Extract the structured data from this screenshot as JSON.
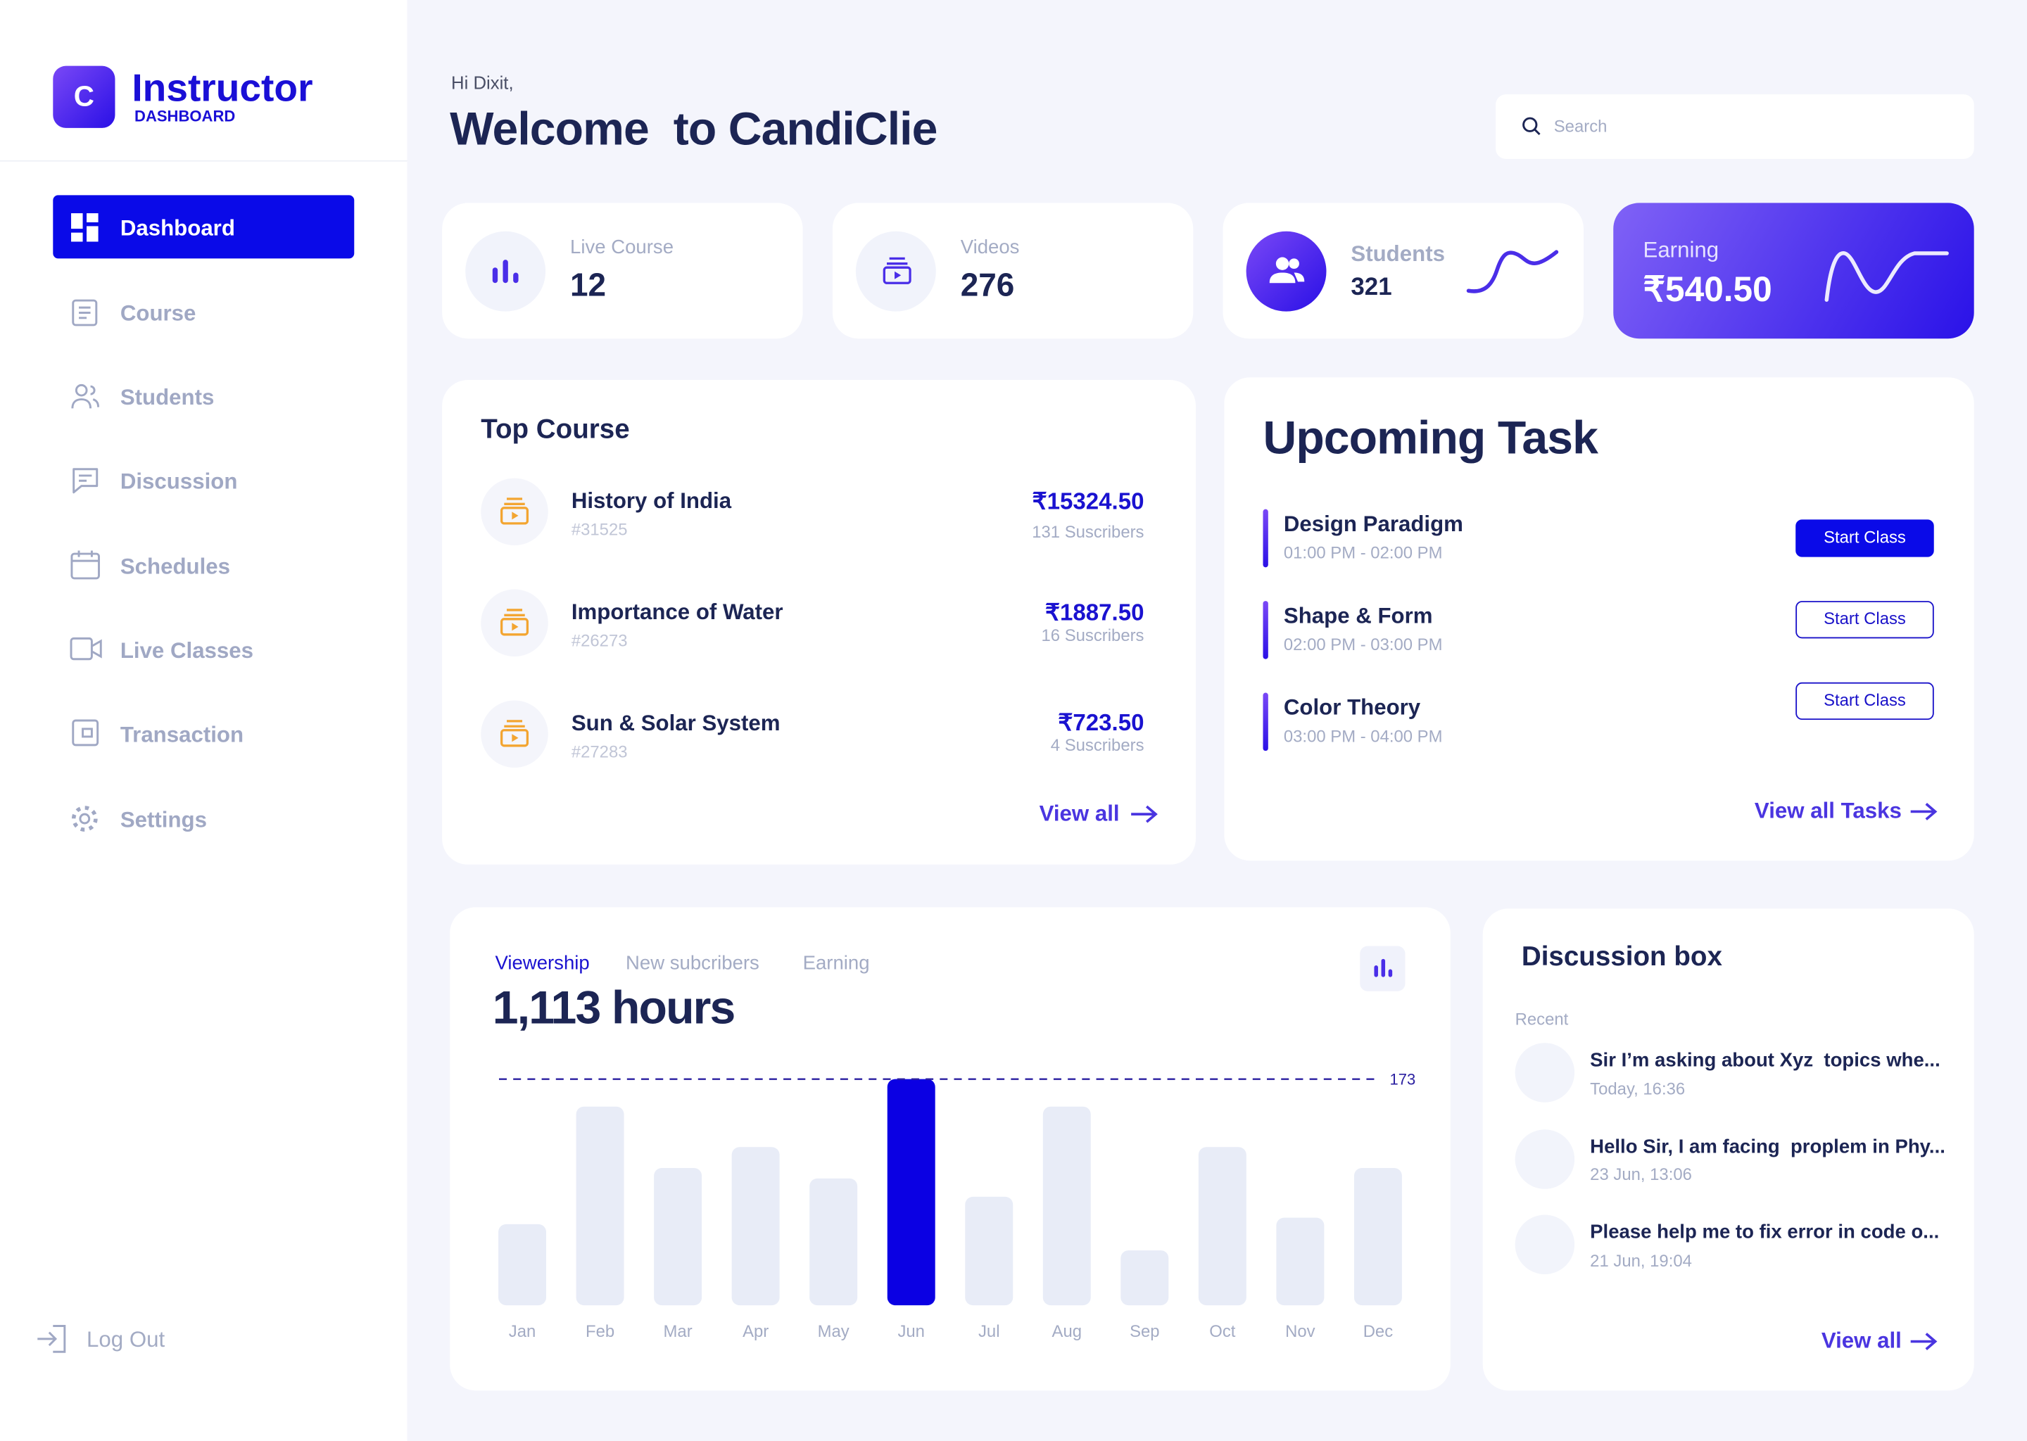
{
  "sidebar": {
    "logo_letter": "C",
    "brand": "Instructor",
    "brand_sub": "DASHBOARD",
    "nav": [
      "Dashboard",
      "Course",
      "Students",
      "Discussion",
      "Schedules",
      "Live Classes",
      "Transaction",
      "Settings"
    ],
    "logout": "Log Out"
  },
  "header": {
    "greeting": "Hi Dixit,",
    "title": "Welcome  to CandiClie",
    "search_placeholder": "Search"
  },
  "stats": [
    {
      "label": "Live Course",
      "value": 12
    },
    {
      "label": "Videos",
      "value": 276
    },
    {
      "label": "Students",
      "value": 321
    },
    {
      "label": "Earning",
      "value": "₹540.50"
    }
  ],
  "top_course": {
    "title": "Top Course",
    "items": [
      {
        "name": "History of India",
        "id": "#31525",
        "price": "₹15324.50",
        "subscribers": "131 Suscribers"
      },
      {
        "name": "Importance of Water",
        "id": "#26273",
        "price": "₹1887.50",
        "subscribers": "16 Suscribers"
      },
      {
        "name": "Sun & Solar System",
        "id": "#27283",
        "price": "₹723.50",
        "subscribers": "4 Suscribers"
      }
    ],
    "view_all": "View all"
  },
  "upcoming": {
    "title": "Upcoming Task",
    "tasks": [
      {
        "name": "Design Paradigm",
        "time": "01:00 PM - 02:00 PM",
        "action": "Start Class"
      },
      {
        "name": "Shape & Form",
        "time": "02:00 PM - 03:00 PM",
        "action": "Start Class"
      },
      {
        "name": "Color Theory",
        "time": "03:00 PM - 04:00 PM",
        "action": "Start Class"
      }
    ],
    "view_all": "View all Tasks"
  },
  "viewership": {
    "tabs": [
      "Viewership",
      "New subcribers",
      "Earning"
    ],
    "total": "1,113 hours",
    "chart": {
      "type": "bar",
      "categories": [
        "Jan",
        "Feb",
        "Mar",
        "Apr",
        "May",
        "Jun",
        "Jul",
        "Aug",
        "Sep",
        "Oct",
        "Nov",
        "Dec"
      ],
      "values": [
        62,
        152,
        105,
        121,
        97,
        173,
        83,
        152,
        42,
        121,
        67,
        105
      ],
      "colors": [
        "#e8ecf7",
        "#e8ecf7",
        "#e8ecf7",
        "#e8ecf7",
        "#e8ecf7",
        "#0b00e3",
        "#e8ecf7",
        "#e8ecf7",
        "#e8ecf7",
        "#e8ecf7",
        "#e8ecf7",
        "#e8ecf7"
      ],
      "ylim": [
        0,
        173
      ],
      "reference_line": 173
    }
  },
  "discussion": {
    "title": "Discussion box",
    "subtitle": "Recent",
    "items": [
      {
        "text": "Sir I’m asking about Xyz  topics whe...",
        "time": "Today, 16:36"
      },
      {
        "text": "Hello Sir, I am facing  proplem in Phy...",
        "time": "23 Jun, 13:06"
      },
      {
        "text": "Please help me to fix error in code o...",
        "time": "21 Jun, 19:04"
      }
    ],
    "view_all": "View all"
  }
}
